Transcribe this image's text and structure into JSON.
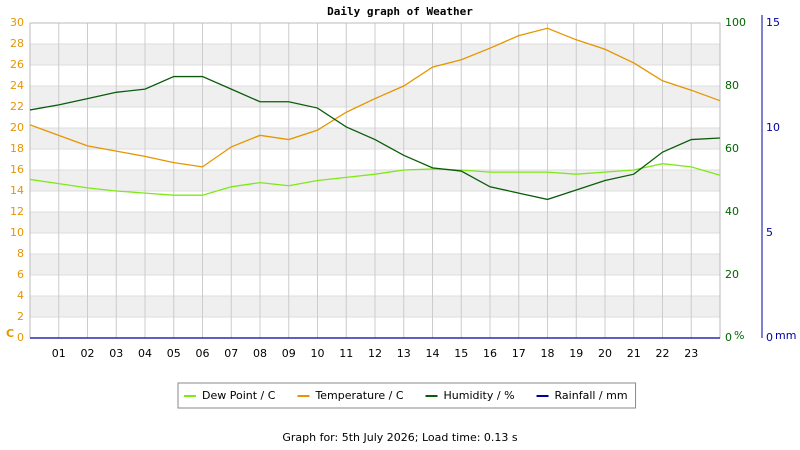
{
  "chart_data": {
    "type": "line",
    "title": "Daily graph of Weather",
    "x": [
      0,
      1,
      2,
      3,
      4,
      5,
      6,
      7,
      8,
      9,
      10,
      11,
      12,
      13,
      14,
      15,
      16,
      17,
      18,
      19,
      20,
      21,
      22,
      23,
      24
    ],
    "xlim": [
      0,
      24
    ],
    "xticks": [
      {
        "value": 1,
        "label": "01"
      },
      {
        "value": 2,
        "label": "02"
      },
      {
        "value": 3,
        "label": "03"
      },
      {
        "value": 4,
        "label": "04"
      },
      {
        "value": 5,
        "label": "05"
      },
      {
        "value": 6,
        "label": "06"
      },
      {
        "value": 7,
        "label": "07"
      },
      {
        "value": 8,
        "label": "08"
      },
      {
        "value": 9,
        "label": "09"
      },
      {
        "value": 10,
        "label": "10"
      },
      {
        "value": 11,
        "label": "11"
      },
      {
        "value": 12,
        "label": "12"
      },
      {
        "value": 13,
        "label": "13"
      },
      {
        "value": 14,
        "label": "14"
      },
      {
        "value": 15,
        "label": "15"
      },
      {
        "value": 16,
        "label": "16"
      },
      {
        "value": 17,
        "label": "17"
      },
      {
        "value": 18,
        "label": "18"
      },
      {
        "value": 19,
        "label": "19"
      },
      {
        "value": 20,
        "label": "20"
      },
      {
        "value": 21,
        "label": "21"
      },
      {
        "value": 22,
        "label": "22"
      },
      {
        "value": 23,
        "label": "23"
      }
    ],
    "ylim": [
      0,
      30
    ],
    "yticks": [
      0,
      2,
      4,
      6,
      8,
      10,
      12,
      14,
      16,
      18,
      20,
      22,
      24,
      26,
      28,
      30
    ],
    "y_label": "C",
    "y_color": "#e69500",
    "y2lim": [
      0,
      100
    ],
    "y2ticks": [
      0,
      20,
      40,
      60,
      80,
      100
    ],
    "y2_label": "%",
    "y2_color": "#006400",
    "y3lim": [
      0,
      15
    ],
    "y3ticks": [
      0,
      5,
      10,
      15
    ],
    "y3_label": "mm",
    "y3_color": "#0000a0",
    "grid": true,
    "series": [
      {
        "name": "Dew Point / C",
        "color": "#7fe817",
        "values": [
          15.1,
          14.7,
          14.3,
          14.0,
          13.8,
          13.6,
          13.6,
          14.4,
          14.8,
          14.5,
          15.0,
          15.3,
          15.6,
          16.0,
          16.1,
          16.0,
          15.8,
          15.8,
          15.8,
          15.6,
          15.8,
          16.0,
          16.6,
          16.3,
          15.5
        ]
      },
      {
        "name": "Temperature / C",
        "color": "#e69500",
        "values": [
          20.3,
          19.3,
          18.3,
          17.8,
          17.3,
          16.7,
          16.3,
          18.2,
          19.3,
          18.9,
          19.8,
          21.5,
          22.8,
          24.0,
          25.8,
          26.5,
          27.6,
          28.8,
          29.5,
          28.4,
          27.5,
          26.2,
          24.5,
          23.6,
          22.6
        ]
      },
      {
        "name": "Humidity / %",
        "color": "#0a5c0a",
        "axis": "y2",
        "values": [
          72.4,
          74,
          76,
          78,
          79,
          83,
          83,
          79,
          75,
          75,
          73,
          67,
          63,
          58,
          54,
          53,
          48,
          46,
          44,
          47,
          50,
          52,
          59,
          63,
          63.5
        ]
      },
      {
        "name": "Rainfall / mm",
        "color": "#0000a0",
        "axis": "y3",
        "values": [
          0,
          0,
          0,
          0,
          0,
          0,
          0,
          0,
          0,
          0,
          0,
          0,
          0,
          0,
          0,
          0,
          0,
          0,
          0,
          0,
          0,
          0,
          0,
          0,
          0
        ]
      }
    ],
    "footer": "Graph for: 5th July 2026; Load time: 0.13 s"
  }
}
